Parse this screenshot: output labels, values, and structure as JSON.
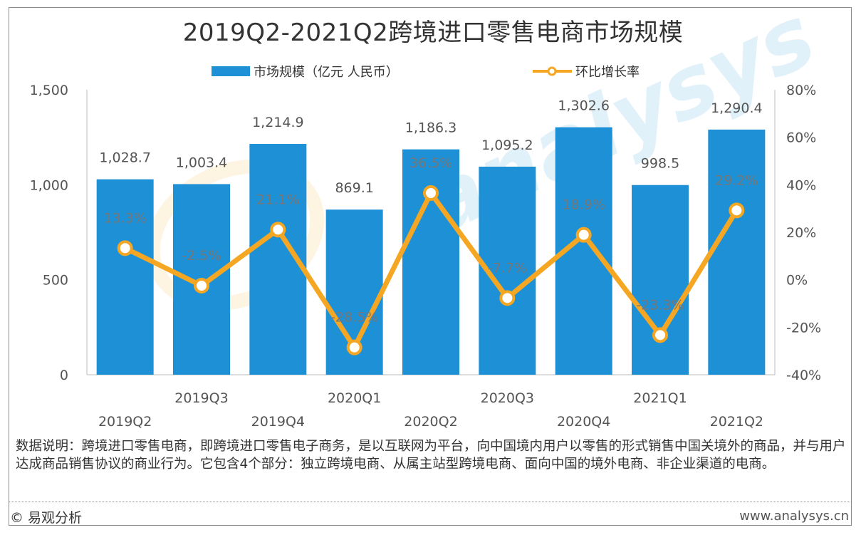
{
  "title": "2019Q2-2021Q2跨境进口零售电商市场规模",
  "chart_data": {
    "type": "bar",
    "categories": [
      "2019Q2",
      "2019Q3",
      "2019Q4",
      "2020Q1",
      "2020Q2",
      "2020Q3",
      "2020Q4",
      "2021Q1",
      "2021Q2"
    ],
    "series": [
      {
        "name": "市场规模（亿元 人民币）",
        "type": "bar",
        "axis": "left",
        "values": [
          1028.7,
          1003.4,
          1214.9,
          869.1,
          1186.3,
          1095.2,
          1302.6,
          998.5,
          1290.4
        ],
        "labels": [
          "1,028.7",
          "1,003.4",
          "1,214.9",
          "869.1",
          "1,186.3",
          "1,095.2",
          "1,302.6",
          "998.5",
          "1,290.4"
        ],
        "color": "#1e90d6"
      },
      {
        "name": "环比增长率",
        "type": "line",
        "axis": "right",
        "values": [
          13.3,
          -2.5,
          21.1,
          -28.5,
          36.5,
          -7.7,
          18.9,
          -23.3,
          29.2
        ],
        "labels": [
          "13.3%",
          "-2.5%",
          "21.1%",
          "-28.5%",
          "36.5%",
          "-7.7%",
          "18.9%",
          "-23.3%",
          "29.2%"
        ],
        "color": "#f5a623"
      }
    ],
    "left_axis": {
      "ylim": [
        0,
        1500
      ],
      "ticks": [
        "0",
        "500",
        "1,000",
        "1,500"
      ],
      "tick_values": [
        0,
        500,
        1000,
        1500
      ]
    },
    "right_axis": {
      "ylim": [
        -40,
        80
      ],
      "ticks": [
        "-40%",
        "-20%",
        "0%",
        "20%",
        "40%",
        "60%",
        "80%"
      ],
      "tick_values": [
        -40,
        -20,
        0,
        20,
        40,
        60,
        80
      ]
    },
    "legend_position": "top-center",
    "grid": false
  },
  "legend": {
    "bar_label": "市场规模（亿元 人民币）",
    "line_label": "环比增长率"
  },
  "note": "数据说明：跨境进口零售电商，即跨境进口零售电子商务，是以互联网为平台，向中国境内用户以零售的形式销售中国关境外的商品，并与用户达成商品销售协议的商业行为。它包含4个部分：独立跨境电商、从属主站型跨境电商、面向中国的境外电商、非企业渠道的电商。",
  "footer": {
    "copyright": "© 易观分析",
    "website": "www.analysys.cn"
  },
  "watermark": "analysys 易观",
  "colors": {
    "bar": "#1e90d6",
    "line": "#f5a623",
    "marker_fill": "#ffffff"
  }
}
